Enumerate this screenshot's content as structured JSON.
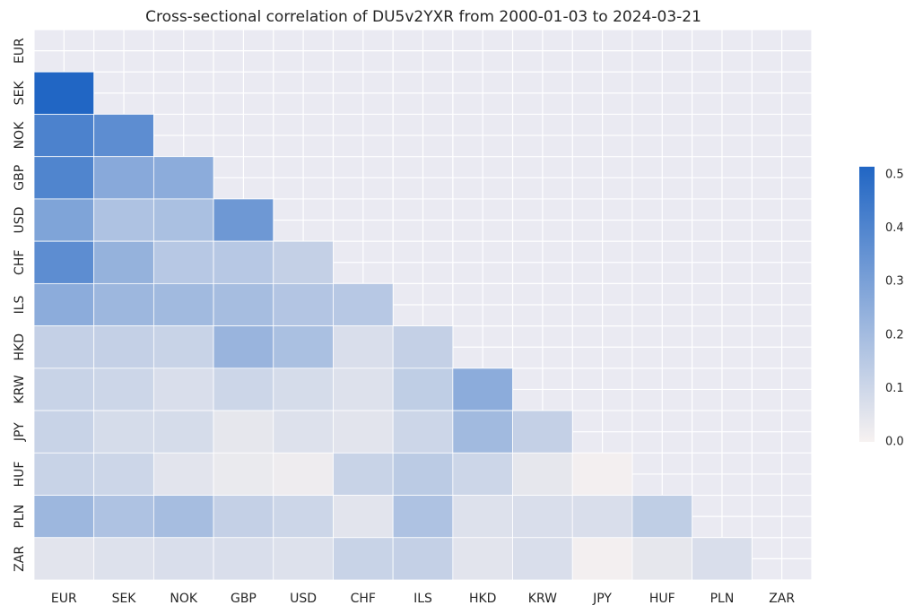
{
  "chart_data": {
    "type": "heatmap",
    "title": "Cross-sectional correlation of DU5v2YXR from 2000-01-03 to 2024-03-21",
    "xlabel": "",
    "ylabel": "",
    "row_labels": [
      "EUR",
      "SEK",
      "NOK",
      "GBP",
      "USD",
      "CHF",
      "ILS",
      "HKD",
      "KRW",
      "JPY",
      "HUF",
      "PLN",
      "ZAR"
    ],
    "col_labels": [
      "EUR",
      "SEK",
      "NOK",
      "GBP",
      "USD",
      "CHF",
      "ILS",
      "HKD",
      "KRW",
      "JPY",
      "HUF",
      "PLN",
      "ZAR"
    ],
    "matrix": [
      [
        null,
        null,
        null,
        null,
        null,
        null,
        null,
        null,
        null,
        null,
        null,
        null,
        null
      ],
      [
        0.51,
        null,
        null,
        null,
        null,
        null,
        null,
        null,
        null,
        null,
        null,
        null,
        null
      ],
      [
        0.4,
        0.36,
        null,
        null,
        null,
        null,
        null,
        null,
        null,
        null,
        null,
        null,
        null
      ],
      [
        0.39,
        0.26,
        0.25,
        null,
        null,
        null,
        null,
        null,
        null,
        null,
        null,
        null,
        null
      ],
      [
        0.28,
        0.17,
        0.18,
        0.32,
        null,
        null,
        null,
        null,
        null,
        null,
        null,
        null,
        null
      ],
      [
        0.36,
        0.23,
        0.15,
        0.15,
        0.12,
        null,
        null,
        null,
        null,
        null,
        null,
        null,
        null
      ],
      [
        0.25,
        0.21,
        0.2,
        0.19,
        0.16,
        0.15,
        null,
        null,
        null,
        null,
        null,
        null,
        null
      ],
      [
        0.12,
        0.12,
        0.11,
        0.22,
        0.18,
        0.07,
        0.12,
        null,
        null,
        null,
        null,
        null,
        null
      ],
      [
        0.11,
        0.1,
        0.07,
        0.1,
        0.08,
        0.06,
        0.13,
        0.25,
        null,
        null,
        null,
        null,
        null
      ],
      [
        0.11,
        0.08,
        0.08,
        0.04,
        0.06,
        0.05,
        0.1,
        0.2,
        0.12,
        null,
        null,
        null,
        null
      ],
      [
        0.11,
        0.1,
        0.05,
        0.03,
        0.02,
        0.11,
        0.14,
        0.1,
        0.04,
        0.01,
        null,
        null,
        null
      ],
      [
        0.21,
        0.17,
        0.19,
        0.12,
        0.1,
        0.05,
        0.17,
        0.06,
        0.07,
        0.07,
        0.13,
        null,
        null
      ],
      [
        0.05,
        0.06,
        0.07,
        0.07,
        0.06,
        0.11,
        0.12,
        0.05,
        0.07,
        0.01,
        0.04,
        0.07,
        null
      ]
    ],
    "mask": "upper triangle including diagonal",
    "colorbar": {
      "min": 0.0,
      "max": 0.5,
      "ticks": [
        "0.0",
        "0.1",
        "0.2",
        "0.3",
        "0.4",
        "0.5"
      ],
      "colors": [
        "#f7f2f1",
        "#2166c4"
      ]
    },
    "grid": true,
    "background_color": "#eaeaf2"
  }
}
